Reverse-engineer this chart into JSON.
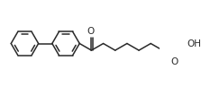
{
  "background": "#ffffff",
  "line_color": "#2a2a2a",
  "lw": 1.1,
  "figsize": [
    2.23,
    0.97
  ],
  "dpi": 100,
  "xlim": [
    0.0,
    8.4
  ],
  "ylim": [
    -1.6,
    1.6
  ],
  "ring_r": 0.72,
  "bl": 0.72,
  "label_fs": 7.5
}
